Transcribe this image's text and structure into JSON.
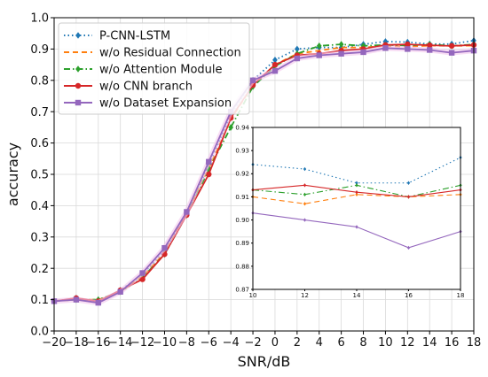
{
  "chart_data": [
    {
      "type": "line",
      "xlabel": "SNR/dB",
      "ylabel": "accuracy",
      "xlim": [
        -20,
        18
      ],
      "ylim": [
        0.0,
        1.0
      ],
      "xticks": [
        "−20",
        "−18",
        "−16",
        "−14",
        "−12",
        "−10",
        "−8",
        "−6",
        "−4",
        "−2",
        "0",
        "2",
        "4",
        "6",
        "8",
        "10",
        "12",
        "14",
        "16",
        "18"
      ],
      "yticks": [
        "0.0",
        "0.1",
        "0.2",
        "0.3",
        "0.4",
        "0.5",
        "0.6",
        "0.7",
        "0.8",
        "0.9",
        "1.0"
      ],
      "grid": true,
      "legend_position": "upper-left",
      "x": [
        -20,
        -18,
        -16,
        -14,
        -12,
        -10,
        -8,
        -6,
        -4,
        -2,
        0,
        2,
        4,
        6,
        8,
        10,
        12,
        14,
        16,
        18
      ],
      "series": [
        {
          "name": "P-CNN-LSTM",
          "color": "#1f77b4",
          "style": "dotted",
          "marker": "diamond",
          "values": [
            0.095,
            0.105,
            0.095,
            0.13,
            0.18,
            0.255,
            0.375,
            0.53,
            0.69,
            0.8,
            0.865,
            0.9,
            0.905,
            0.905,
            0.915,
            0.924,
            0.922,
            0.916,
            0.916,
            0.927
          ]
        },
        {
          "name": "w/o Residual Connection",
          "color": "#ff7f0e",
          "style": "dashed",
          "marker": "none",
          "values": [
            0.095,
            0.1,
            0.1,
            0.125,
            0.175,
            0.25,
            0.375,
            0.52,
            0.675,
            0.785,
            0.85,
            0.885,
            0.895,
            0.905,
            0.905,
            0.91,
            0.907,
            0.911,
            0.91,
            0.911
          ]
        },
        {
          "name": "w/o Attention Module",
          "color": "#2ca02c",
          "style": "dashdot",
          "marker": "diamond",
          "values": [
            0.095,
            0.1,
            0.1,
            0.125,
            0.17,
            0.245,
            0.37,
            0.515,
            0.65,
            0.78,
            0.845,
            0.885,
            0.91,
            0.915,
            0.91,
            0.913,
            0.911,
            0.915,
            0.91,
            0.915
          ]
        },
        {
          "name": "w/o CNN branch",
          "color": "#d62728",
          "style": "solid",
          "marker": "circle",
          "values": [
            0.095,
            0.105,
            0.095,
            0.13,
            0.165,
            0.245,
            0.37,
            0.5,
            0.68,
            0.785,
            0.85,
            0.88,
            0.885,
            0.895,
            0.9,
            0.913,
            0.915,
            0.912,
            0.91,
            0.913
          ]
        },
        {
          "name": "w/o Dataset Expansion",
          "color": "#9467bd",
          "style": "solid",
          "marker": "square",
          "values": [
            0.095,
            0.1,
            0.09,
            0.125,
            0.185,
            0.265,
            0.38,
            0.54,
            0.7,
            0.8,
            0.83,
            0.87,
            0.88,
            0.885,
            0.89,
            0.903,
            0.9,
            0.897,
            0.888,
            0.895
          ]
        }
      ]
    },
    {
      "type": "line",
      "xlim": [
        10,
        18
      ],
      "ylim": [
        0.87,
        0.94
      ],
      "xticks": [
        "10",
        "12",
        "14",
        "16",
        "18"
      ],
      "yticks": [
        "0.87",
        "0.88",
        "0.89",
        "0.90",
        "0.91",
        "0.92",
        "0.93",
        "0.94"
      ],
      "grid": false,
      "x": [
        10,
        12,
        14,
        16,
        18
      ],
      "series": [
        {
          "color": "#1f77b4",
          "style": "dotted",
          "values": [
            0.924,
            0.922,
            0.916,
            0.916,
            0.927
          ]
        },
        {
          "color": "#ff7f0e",
          "style": "dashed",
          "values": [
            0.91,
            0.907,
            0.911,
            0.91,
            0.911
          ]
        },
        {
          "color": "#2ca02c",
          "style": "dashdot",
          "values": [
            0.913,
            0.911,
            0.915,
            0.91,
            0.915
          ]
        },
        {
          "color": "#d62728",
          "style": "solid",
          "values": [
            0.913,
            0.915,
            0.912,
            0.91,
            0.913
          ]
        },
        {
          "color": "#9467bd",
          "style": "solid",
          "values": [
            0.903,
            0.9,
            0.897,
            0.888,
            0.895
          ]
        }
      ]
    }
  ]
}
